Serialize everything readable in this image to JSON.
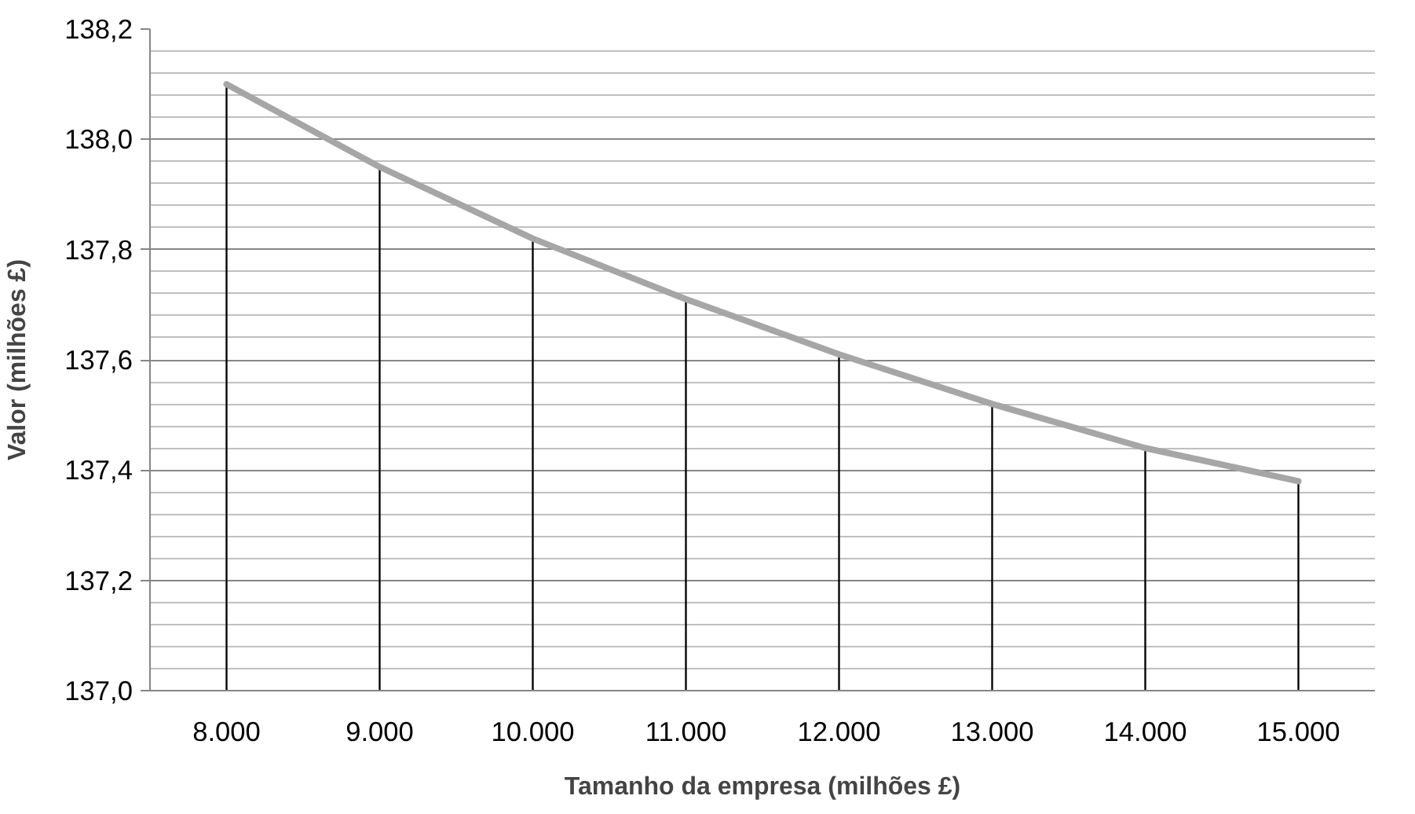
{
  "chart_data": {
    "type": "line",
    "xlabel": "Tamanho da empresa (milhões £)",
    "ylabel": "Valor (milhões £)",
    "categories": [
      "8.000",
      "9.000",
      "10.000",
      "11.000",
      "12.000",
      "13.000",
      "14.000",
      "15.000"
    ],
    "series": [
      {
        "color": "#a6a6a6",
        "values": [
          138.1,
          137.95,
          137.82,
          137.71,
          137.61,
          137.52,
          137.44,
          137.38
        ]
      },
      {
        "type": "bar",
        "color": "#000000",
        "values": [
          138.1,
          137.95,
          137.82,
          137.71,
          137.61,
          137.52,
          137.44,
          137.38
        ]
      }
    ],
    "ylim": [
      137.0,
      138.2
    ],
    "yticks": [
      {
        "value": 137.0,
        "label": "137,0"
      },
      {
        "value": 137.04,
        "label": null
      },
      {
        "value": 137.08,
        "label": null
      },
      {
        "value": 137.12,
        "label": null
      },
      {
        "value": 137.16,
        "label": null
      },
      {
        "value": 137.2,
        "label": "137,2"
      },
      {
        "value": 137.24,
        "label": null
      },
      {
        "value": 137.28,
        "label": null
      },
      {
        "value": 137.32,
        "label": null
      },
      {
        "value": 137.36,
        "label": null
      },
      {
        "value": 137.4,
        "label": "137,4"
      },
      {
        "value": 137.44,
        "label": null
      },
      {
        "value": 137.48,
        "label": null
      },
      {
        "value": 137.52,
        "label": null
      },
      {
        "value": 137.56,
        "label": null
      },
      {
        "value": 137.6,
        "label": "137,6"
      },
      {
        "value": 137.64,
        "label": null
      },
      {
        "value": 137.68,
        "label": null
      },
      {
        "value": 137.72,
        "label": null
      },
      {
        "value": 137.76,
        "label": null
      },
      {
        "value": 137.8,
        "label": "137,8"
      },
      {
        "value": 137.84,
        "label": null
      },
      {
        "value": 137.88,
        "label": null
      },
      {
        "value": 137.92,
        "label": null
      },
      {
        "value": 137.96,
        "label": null
      },
      {
        "value": 138.0,
        "label": "138,0"
      },
      {
        "value": 138.04,
        "label": null
      },
      {
        "value": 138.08,
        "label": null
      },
      {
        "value": 138.12,
        "label": null
      },
      {
        "value": 138.16,
        "label": null
      },
      {
        "value": 138.2,
        "label": "138,2"
      }
    ],
    "grid": "y"
  }
}
